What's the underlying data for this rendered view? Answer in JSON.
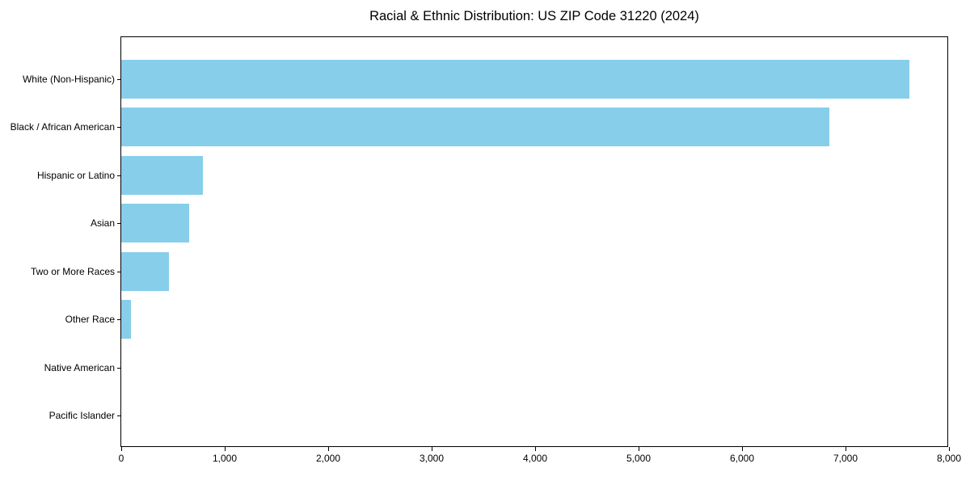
{
  "chart_data": {
    "type": "bar",
    "orientation": "horizontal",
    "title": "Racial & Ethnic Distribution: US ZIP Code 31220 (2024)",
    "categories": [
      "White (Non-Hispanic)",
      "Black / African American",
      "Hispanic or Latino",
      "Asian",
      "Two or More Races",
      "Other Race",
      "Native American",
      "Pacific Islander"
    ],
    "values": [
      7620,
      6840,
      790,
      660,
      460,
      90,
      0,
      0
    ],
    "xlabel": "",
    "ylabel": "",
    "xlim": [
      0,
      8000
    ],
    "xticks": [
      0,
      1000,
      2000,
      3000,
      4000,
      5000,
      6000,
      7000,
      8000
    ],
    "xtick_labels": [
      "0",
      "1,000",
      "2,000",
      "3,000",
      "4,000",
      "5,000",
      "6,000",
      "7,000",
      "8,000"
    ],
    "bar_color": "#87CEEB",
    "axis_color": "#000000",
    "grid": false,
    "legend": null
  }
}
